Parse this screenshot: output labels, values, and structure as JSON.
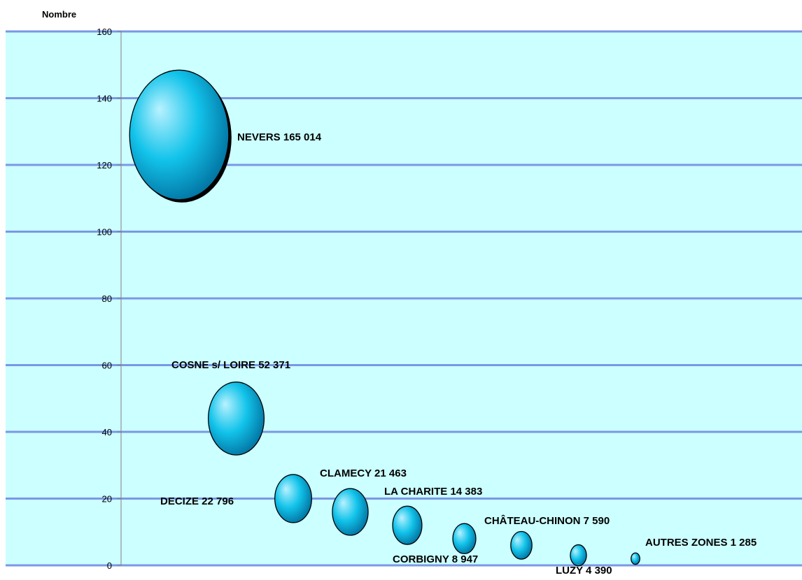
{
  "chart_data": {
    "type": "bubble",
    "ylabel": "Nombre",
    "ylim": [
      0,
      160
    ],
    "yticks": [
      0,
      20,
      40,
      60,
      80,
      100,
      120,
      140,
      160
    ],
    "grid": true,
    "legend": "none",
    "colors": {
      "plot_background": "#ccffff",
      "gridline": "#7b97e6",
      "axis": "#808080",
      "bubble_light": "#b9f2ff",
      "bubble_mid": "#12c3ea",
      "bubble_dark": "#0378a6",
      "bubble_outline": "#000000"
    },
    "points": [
      {
        "label": "NEVERS 165 014",
        "x": 1,
        "y": 129,
        "size": 165014
      },
      {
        "label": "COSNE s/ LOIRE 52 371",
        "x": 2,
        "y": 44,
        "size": 52371
      },
      {
        "label": "DECIZE 22 796",
        "x": 3,
        "y": 20,
        "size": 22796
      },
      {
        "label": "CLAMECY 21 463",
        "x": 4,
        "y": 16,
        "size": 21463
      },
      {
        "label": "LA CHARITE  14 383",
        "x": 5,
        "y": 12,
        "size": 14383
      },
      {
        "label": "CORBIGNY 8 947",
        "x": 6,
        "y": 8,
        "size": 8947
      },
      {
        "label": "CHÂTEAU-CHINON 7 590",
        "x": 7,
        "y": 6,
        "size": 7590
      },
      {
        "label": "LUZY 4 390",
        "x": 8,
        "y": 3,
        "size": 4390
      },
      {
        "label": "AUTRES ZONES 1 285",
        "x": 9,
        "y": 2,
        "size": 1285
      }
    ]
  }
}
